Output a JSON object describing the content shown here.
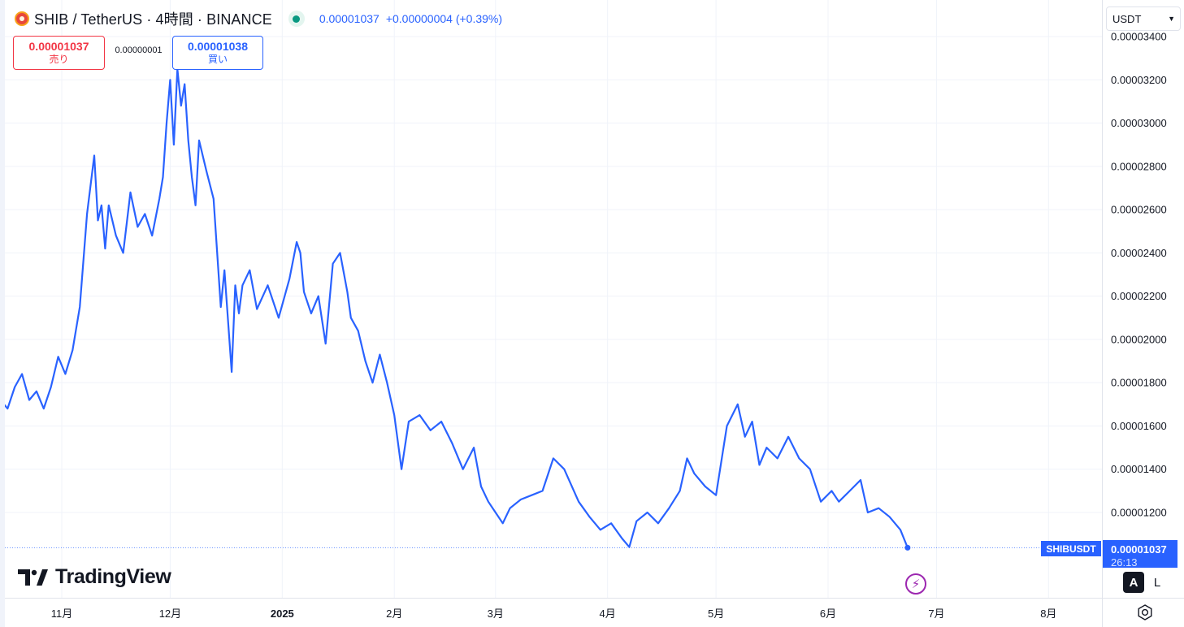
{
  "header": {
    "title": "SHIB / TetherUS · 4時間 · BINANCE",
    "last_price": "0.00001037",
    "change": "+0.00000004 (+0.39%)"
  },
  "trade": {
    "sell_price": "0.00001037",
    "sell_label": "売り",
    "spread": "0.00000001",
    "buy_price": "0.00001038",
    "buy_label": "買い"
  },
  "currency": {
    "selected": "USDT"
  },
  "scale_modes": {
    "auto": "A",
    "log": "L"
  },
  "branding": {
    "logo_text": "TradingView"
  },
  "price_tag": {
    "symbol": "SHIBUSDT",
    "value": "0.00001037",
    "countdown": "26:13"
  },
  "colors": {
    "line": "#2962ff",
    "sell": "#f23645",
    "buy": "#2962ff",
    "status": "#089981",
    "grid": "#f0f3fa"
  },
  "chart_data": {
    "type": "line",
    "title": "SHIB / TetherUS · 4時間 · BINANCE",
    "xlabel": "",
    "ylabel": "",
    "ylim": [
      1e-05,
      3.44e-05
    ],
    "y_ticks": [
      "0.00003400",
      "0.00003200",
      "0.00003000",
      "0.00002800",
      "0.00002600",
      "0.00002400",
      "0.00002200",
      "0.00002000",
      "0.00001800",
      "0.00001600",
      "0.00001400",
      "0.00001200"
    ],
    "x_ticks": [
      "11月",
      "12月",
      "2025",
      "2月",
      "3月",
      "4月",
      "5月",
      "6月",
      "7月",
      "8月"
    ],
    "grid": true,
    "series": [
      {
        "x": [
          "2024-10-07",
          "2024-10-09",
          "2024-10-12",
          "2024-10-15",
          "2024-10-17",
          "2024-10-19",
          "2024-10-21",
          "2024-10-23",
          "2024-10-25",
          "2024-10-27",
          "2024-10-29",
          "2024-10-31",
          "2024-11-02",
          "2024-11-04",
          "2024-11-06",
          "2024-11-08",
          "2024-11-10",
          "2024-11-11",
          "2024-11-12",
          "2024-11-13",
          "2024-11-14",
          "2024-11-16",
          "2024-11-18",
          "2024-11-20",
          "2024-11-22",
          "2024-11-24",
          "2024-11-26",
          "2024-11-28",
          "2024-11-29",
          "2024-11-30",
          "2024-12-01",
          "2024-12-02",
          "2024-12-03",
          "2024-12-04",
          "2024-12-05",
          "2024-12-06",
          "2024-12-07",
          "2024-12-08",
          "2024-12-09",
          "2024-12-11",
          "2024-12-13",
          "2024-12-15",
          "2024-12-16",
          "2024-12-18",
          "2024-12-19",
          "2024-12-20",
          "2024-12-21",
          "2024-12-23",
          "2024-12-25",
          "2024-12-28",
          "2024-12-31",
          "2025-01-03",
          "2025-01-05",
          "2025-01-06",
          "2025-01-07",
          "2025-01-09",
          "2025-01-11",
          "2025-01-13",
          "2025-01-15",
          "2025-01-17",
          "2025-01-19",
          "2025-01-20",
          "2025-01-22",
          "2025-01-24",
          "2025-01-26",
          "2025-01-28",
          "2025-01-30",
          "2025-02-01",
          "2025-02-03",
          "2025-02-05",
          "2025-02-08",
          "2025-02-11",
          "2025-02-14",
          "2025-02-17",
          "2025-02-20",
          "2025-02-23",
          "2025-02-25",
          "2025-02-27",
          "2025-03-01",
          "2025-03-03",
          "2025-03-05",
          "2025-03-08",
          "2025-03-11",
          "2025-03-14",
          "2025-03-17",
          "2025-03-20",
          "2025-03-24",
          "2025-03-27",
          "2025-03-30",
          "2025-04-02",
          "2025-04-05",
          "2025-04-07",
          "2025-04-09",
          "2025-04-12",
          "2025-04-15",
          "2025-04-18",
          "2025-04-21",
          "2025-04-23",
          "2025-04-25",
          "2025-04-28",
          "2025-05-01",
          "2025-05-04",
          "2025-05-07",
          "2025-05-09",
          "2025-05-11",
          "2025-05-13",
          "2025-05-15",
          "2025-05-18",
          "2025-05-21",
          "2025-05-24",
          "2025-05-27",
          "2025-05-30",
          "2025-06-02",
          "2025-06-04",
          "2025-06-07",
          "2025-06-10",
          "2025-06-12",
          "2025-06-15",
          "2025-06-18",
          "2025-06-21",
          "2025-06-23"
        ],
        "values": [
          1.82e-05,
          1.88e-05,
          1.78e-05,
          1.72e-05,
          1.68e-05,
          1.78e-05,
          1.84e-05,
          1.72e-05,
          1.76e-05,
          1.68e-05,
          1.78e-05,
          1.92e-05,
          1.84e-05,
          1.95e-05,
          2.15e-05,
          2.58e-05,
          2.85e-05,
          2.55e-05,
          2.62e-05,
          2.42e-05,
          2.62e-05,
          2.48e-05,
          2.4e-05,
          2.68e-05,
          2.52e-05,
          2.58e-05,
          2.48e-05,
          2.65e-05,
          2.75e-05,
          3e-05,
          3.2e-05,
          2.9e-05,
          3.25e-05,
          3.08e-05,
          3.18e-05,
          2.92e-05,
          2.75e-05,
          2.62e-05,
          2.92e-05,
          2.78e-05,
          2.65e-05,
          2.15e-05,
          2.32e-05,
          1.85e-05,
          2.25e-05,
          2.12e-05,
          2.25e-05,
          2.32e-05,
          2.14e-05,
          2.25e-05,
          2.1e-05,
          2.28e-05,
          2.45e-05,
          2.4e-05,
          2.22e-05,
          2.12e-05,
          2.2e-05,
          1.98e-05,
          2.35e-05,
          2.4e-05,
          2.22e-05,
          2.1e-05,
          2.04e-05,
          1.9e-05,
          1.8e-05,
          1.93e-05,
          1.8e-05,
          1.65e-05,
          1.4e-05,
          1.62e-05,
          1.65e-05,
          1.58e-05,
          1.62e-05,
          1.52e-05,
          1.4e-05,
          1.5e-05,
          1.32e-05,
          1.25e-05,
          1.2e-05,
          1.15e-05,
          1.22e-05,
          1.26e-05,
          1.28e-05,
          1.3e-05,
          1.45e-05,
          1.4e-05,
          1.25e-05,
          1.18e-05,
          1.12e-05,
          1.15e-05,
          1.08e-05,
          1.04e-05,
          1.16e-05,
          1.2e-05,
          1.15e-05,
          1.22e-05,
          1.3e-05,
          1.45e-05,
          1.38e-05,
          1.32e-05,
          1.28e-05,
          1.6e-05,
          1.7e-05,
          1.55e-05,
          1.62e-05,
          1.42e-05,
          1.5e-05,
          1.45e-05,
          1.55e-05,
          1.45e-05,
          1.4e-05,
          1.25e-05,
          1.3e-05,
          1.25e-05,
          1.3e-05,
          1.35e-05,
          1.2e-05,
          1.22e-05,
          1.18e-05,
          1.12e-05,
          1.037e-05
        ]
      }
    ]
  }
}
